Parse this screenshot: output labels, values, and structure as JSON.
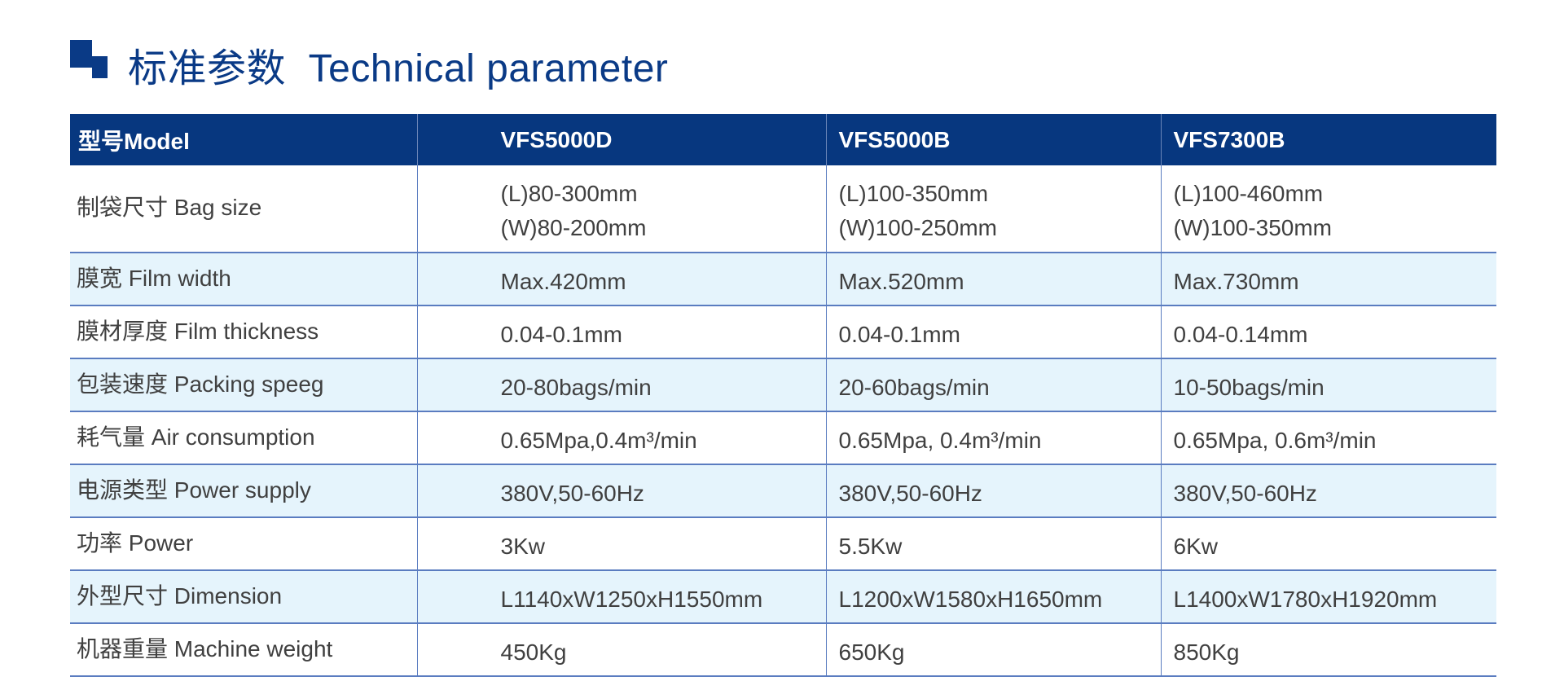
{
  "title": "标准参数  Technical parameter",
  "colors": {
    "header_bg": "#07377f",
    "alt_row_bg": "#e5f4fc",
    "title": "#0a3a86",
    "border": "#5a7cc0"
  },
  "table": {
    "headers": [
      "型号Model",
      "VFS5000D",
      "VFS5000B",
      "VFS7300B"
    ],
    "rows": [
      {
        "label": "制袋尺寸 Bag size",
        "values": [
          [
            "(L)80-300mm",
            "(W)80-200mm"
          ],
          [
            "(L)100-350mm",
            "(W)100-250mm"
          ],
          [
            "(L)100-460mm",
            "(W)100-350mm"
          ]
        ]
      },
      {
        "label": "膜宽 Film width",
        "values": [
          "Max.420mm",
          "Max.520mm",
          "Max.730mm"
        ]
      },
      {
        "label": "膜材厚度 Film thickness",
        "values": [
          "0.04-0.1mm",
          "0.04-0.1mm",
          "0.04-0.14mm"
        ]
      },
      {
        "label": "包装速度 Packing speeg",
        "values": [
          "20-80bags/min",
          "20-60bags/min",
          "10-50bags/min"
        ]
      },
      {
        "label": "耗气量 Air consumption",
        "values": [
          "0.65Mpa,0.4m³/min",
          "0.65Mpa, 0.4m³/min",
          "0.65Mpa, 0.6m³/min"
        ]
      },
      {
        "label": "电源类型 Power supply",
        "values": [
          "380V,50-60Hz",
          "380V,50-60Hz",
          "380V,50-60Hz"
        ]
      },
      {
        "label": "功率 Power",
        "values": [
          "3Kw",
          "5.5Kw",
          "6Kw"
        ]
      },
      {
        "label": "外型尺寸 Dimension",
        "values": [
          "L1140xW1250xH1550mm",
          "L1200xW1580xH1650mm",
          "L1400xW1780xH1920mm"
        ]
      },
      {
        "label": "机器重量 Machine weight",
        "values": [
          "450Kg",
          "650Kg",
          "850Kg"
        ]
      }
    ]
  }
}
